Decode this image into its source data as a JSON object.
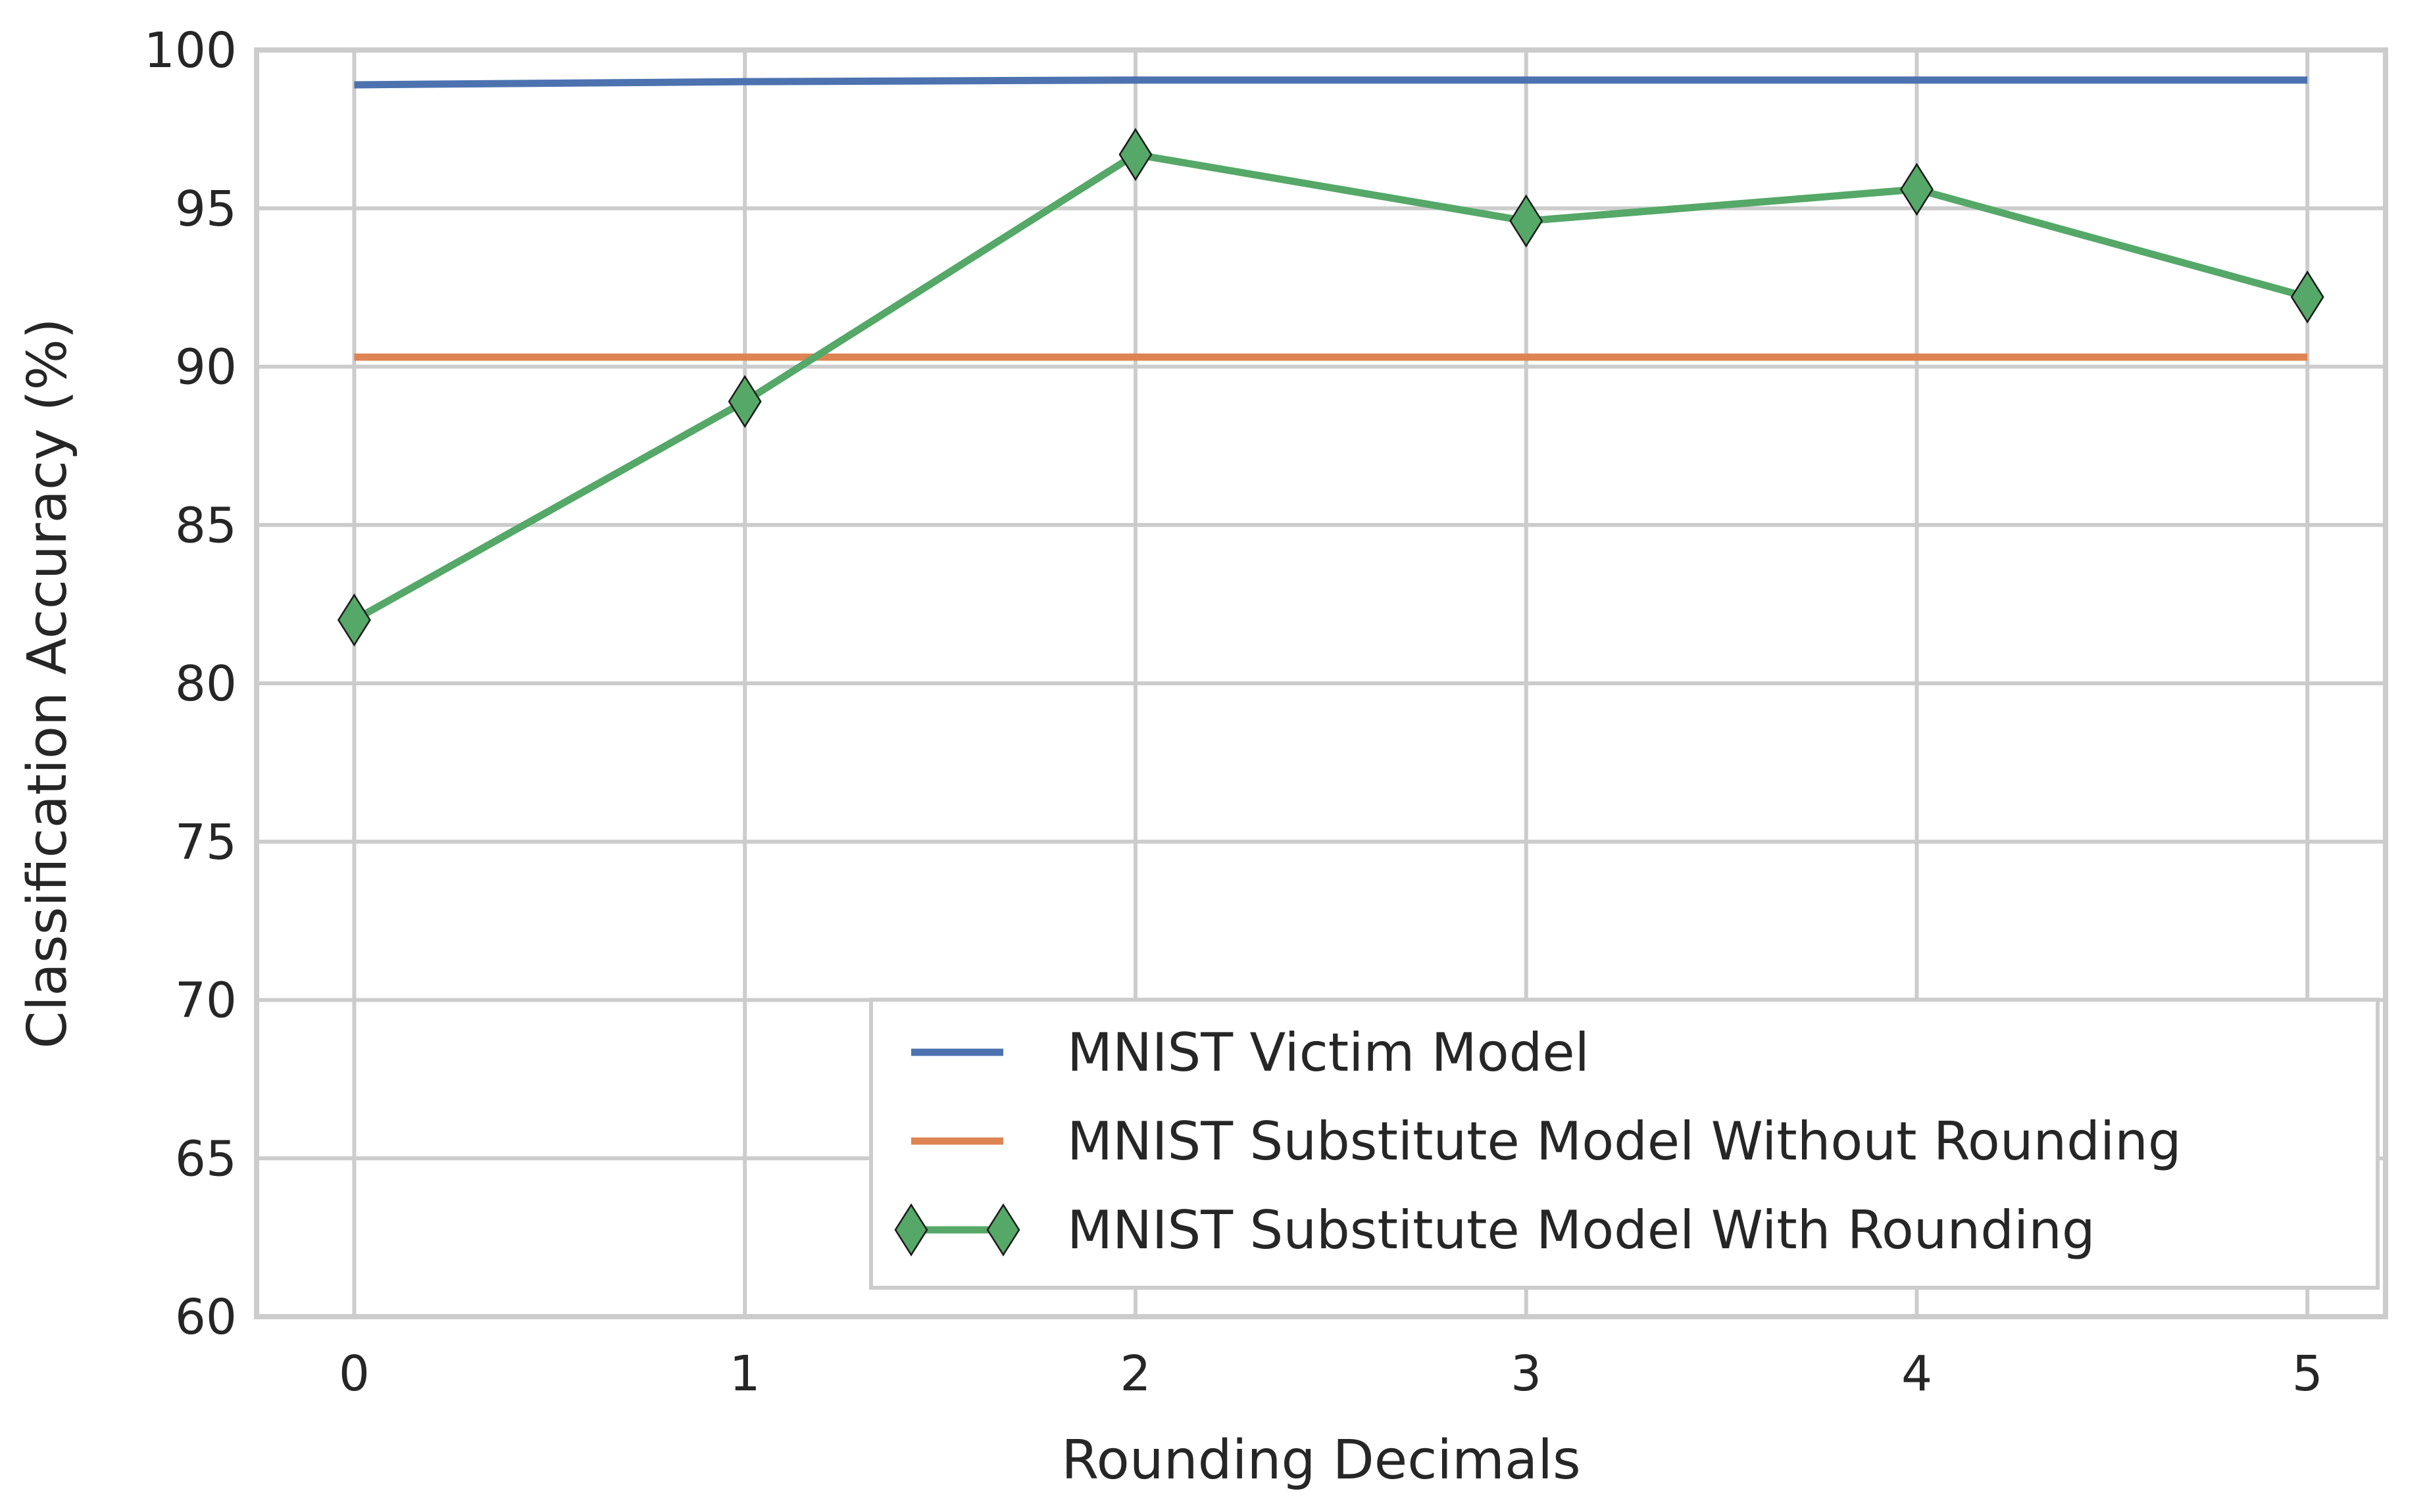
{
  "chart_data": {
    "type": "line",
    "title": "",
    "xlabel": "Rounding Decimals",
    "ylabel": "Classification Accuracy (%)",
    "x": [
      0,
      1,
      2,
      3,
      4,
      5
    ],
    "xticks": [
      "0",
      "1",
      "2",
      "3",
      "4",
      "5"
    ],
    "yticks": [
      "60",
      "65",
      "70",
      "75",
      "80",
      "85",
      "90",
      "95",
      "100"
    ],
    "xlim": [
      -0.25,
      5.2
    ],
    "ylim": [
      60,
      100
    ],
    "grid": true,
    "legend_position": "lower-right",
    "series": [
      {
        "name": "MNIST Victim Model",
        "values": [
          98.9,
          99.0,
          99.05,
          99.05,
          99.05,
          99.05
        ],
        "color": "#4c72b0",
        "marker": "none"
      },
      {
        "name": "MNIST Substitute Model Without Rounding",
        "values": [
          90.3,
          90.3,
          90.3,
          90.3,
          90.3,
          90.3
        ],
        "color": "#dd8452",
        "marker": "none"
      },
      {
        "name": "MNIST Substitute Model With Rounding",
        "values": [
          82.0,
          88.9,
          96.7,
          94.6,
          95.6,
          92.2
        ],
        "color": "#55a868",
        "marker": "diamond"
      }
    ]
  }
}
